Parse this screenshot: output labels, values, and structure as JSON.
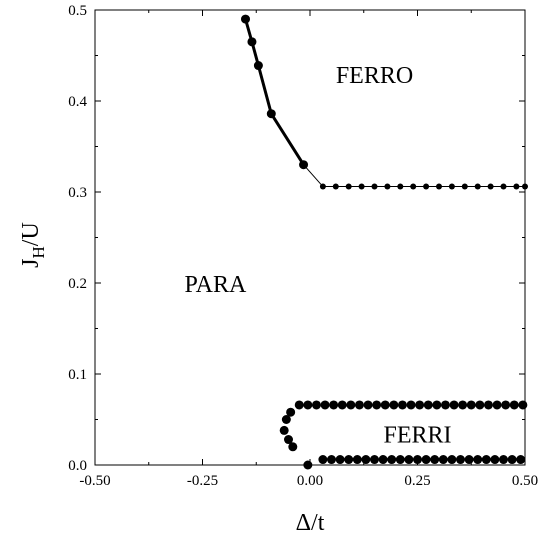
{
  "chart_data": {
    "type": "scatter",
    "title": "",
    "xlabel": "Δ/t",
    "ylabel_main": "J",
    "ylabel_sub": "H",
    "ylabel_rest": "/U",
    "xlim": [
      -0.5,
      0.5
    ],
    "ylim": [
      0.0,
      0.5
    ],
    "x_ticks": [
      -0.5,
      -0.25,
      0.0,
      0.25,
      0.5
    ],
    "x_tick_labels": [
      "-0.50",
      "-0.25",
      "0.00",
      "0.25",
      "0.50"
    ],
    "y_ticks": [
      0.0,
      0.1,
      0.2,
      0.3,
      0.4,
      0.5
    ],
    "y_tick_labels": [
      "0.0",
      "0.1",
      "0.2",
      "0.3",
      "0.4",
      "0.5"
    ],
    "grid": false,
    "legend": "none",
    "regions": [
      {
        "label": "FERRO",
        "x": 0.15,
        "y": 0.42
      },
      {
        "label": "PARA",
        "x": -0.22,
        "y": 0.19
      },
      {
        "label": "FERRI",
        "x": 0.25,
        "y": 0.025
      }
    ],
    "series": [
      {
        "style": "thick-line-with-markers",
        "points": [
          [
            -0.15,
            0.49
          ],
          [
            -0.135,
            0.465
          ],
          [
            -0.12,
            0.439
          ],
          [
            -0.09,
            0.386
          ],
          [
            -0.015,
            0.33
          ]
        ]
      },
      {
        "style": "thin-line",
        "points": [
          [
            -0.015,
            0.33
          ],
          [
            0.03,
            0.306
          ],
          [
            0.5,
            0.306
          ]
        ]
      },
      {
        "style": "dotted-markers",
        "points": [
          [
            0.03,
            0.306
          ],
          [
            0.06,
            0.306
          ],
          [
            0.09,
            0.306
          ],
          [
            0.12,
            0.306
          ],
          [
            0.15,
            0.306
          ],
          [
            0.18,
            0.306
          ],
          [
            0.21,
            0.306
          ],
          [
            0.24,
            0.306
          ],
          [
            0.27,
            0.306
          ],
          [
            0.3,
            0.306
          ],
          [
            0.33,
            0.306
          ],
          [
            0.36,
            0.306
          ],
          [
            0.39,
            0.306
          ],
          [
            0.42,
            0.306
          ],
          [
            0.45,
            0.306
          ],
          [
            0.48,
            0.306
          ],
          [
            0.5,
            0.306
          ]
        ]
      },
      {
        "style": "large-markers",
        "points": [
          [
            -0.055,
            0.05
          ],
          [
            -0.045,
            0.058
          ],
          [
            -0.06,
            0.038
          ],
          [
            -0.05,
            0.028
          ],
          [
            -0.04,
            0.02
          ],
          [
            -0.025,
            0.066
          ],
          [
            -0.005,
            0.066
          ],
          [
            0.015,
            0.066
          ],
          [
            0.035,
            0.066
          ],
          [
            0.055,
            0.066
          ],
          [
            0.075,
            0.066
          ],
          [
            0.095,
            0.066
          ],
          [
            0.115,
            0.066
          ],
          [
            0.135,
            0.066
          ],
          [
            0.155,
            0.066
          ],
          [
            0.175,
            0.066
          ],
          [
            0.195,
            0.066
          ],
          [
            0.215,
            0.066
          ],
          [
            0.235,
            0.066
          ],
          [
            0.255,
            0.066
          ],
          [
            0.275,
            0.066
          ],
          [
            0.295,
            0.066
          ],
          [
            0.315,
            0.066
          ],
          [
            0.335,
            0.066
          ],
          [
            0.355,
            0.066
          ],
          [
            0.375,
            0.066
          ],
          [
            0.395,
            0.066
          ],
          [
            0.415,
            0.066
          ],
          [
            0.435,
            0.066
          ],
          [
            0.455,
            0.066
          ],
          [
            0.475,
            0.066
          ],
          [
            0.495,
            0.066
          ],
          [
            -0.005,
            0.0
          ],
          [
            0.03,
            0.006
          ],
          [
            0.05,
            0.006
          ],
          [
            0.07,
            0.006
          ],
          [
            0.09,
            0.006
          ],
          [
            0.11,
            0.006
          ],
          [
            0.13,
            0.006
          ],
          [
            0.15,
            0.006
          ],
          [
            0.17,
            0.006
          ],
          [
            0.19,
            0.006
          ],
          [
            0.21,
            0.006
          ],
          [
            0.23,
            0.006
          ],
          [
            0.25,
            0.006
          ],
          [
            0.27,
            0.006
          ],
          [
            0.29,
            0.006
          ],
          [
            0.31,
            0.006
          ],
          [
            0.33,
            0.006
          ],
          [
            0.35,
            0.006
          ],
          [
            0.37,
            0.006
          ],
          [
            0.39,
            0.006
          ],
          [
            0.41,
            0.006
          ],
          [
            0.43,
            0.006
          ],
          [
            0.45,
            0.006
          ],
          [
            0.47,
            0.006
          ],
          [
            0.49,
            0.006
          ]
        ]
      }
    ]
  }
}
